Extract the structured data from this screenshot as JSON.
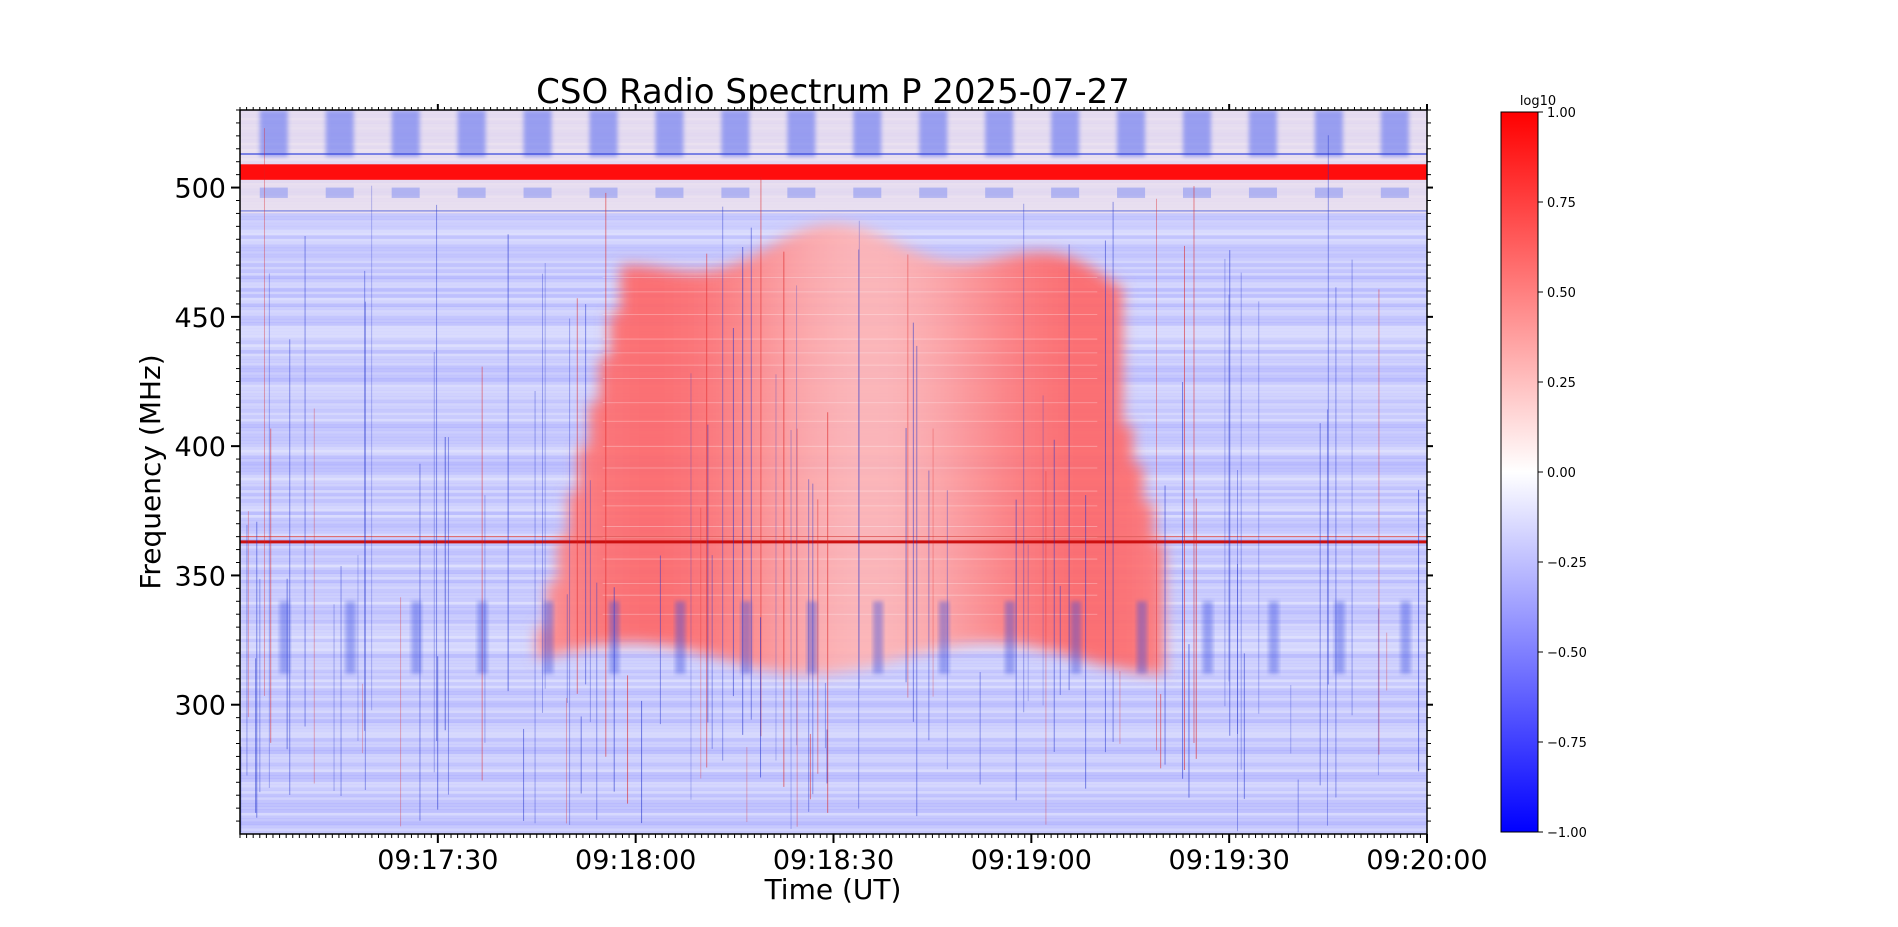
{
  "chart_data": {
    "type": "heatmap",
    "title": "CSO Radio Spectrum P 2025-07-27",
    "xlabel": "Time (UT)",
    "ylabel": "Frequency (MHz)",
    "x_tick_labels": [
      "09:17:30",
      "09:18:00",
      "09:18:30",
      "09:19:00",
      "09:19:30",
      "09:20:00"
    ],
    "xlim": [
      "09:17:00",
      "09:20:00"
    ],
    "y_ticks": [
      300,
      350,
      400,
      450,
      500
    ],
    "ylim": [
      250,
      530
    ],
    "colorbar": {
      "label": "log10",
      "ticks": [
        "1.00",
        "0.75",
        "0.50",
        "0.25",
        "0.00",
        "−0.25",
        "−0.50",
        "−0.75",
        "−1.00"
      ],
      "range": [
        -1.0,
        1.0
      ],
      "colormap": "bwr"
    },
    "features": {
      "burst_time_range": [
        "09:17:45",
        "09:19:20"
      ],
      "burst_freq_range": [
        318,
        480
      ],
      "burst_peak_log10": 0.6,
      "persistent_band_mhz": [
        503,
        509
      ],
      "persistent_band_log10": 0.95,
      "narrow_line_mhz": 363,
      "background_log10": -0.15
    },
    "colors": {
      "max": "#ff0000",
      "mid": "#ffffff",
      "min": "#0000ff"
    }
  }
}
